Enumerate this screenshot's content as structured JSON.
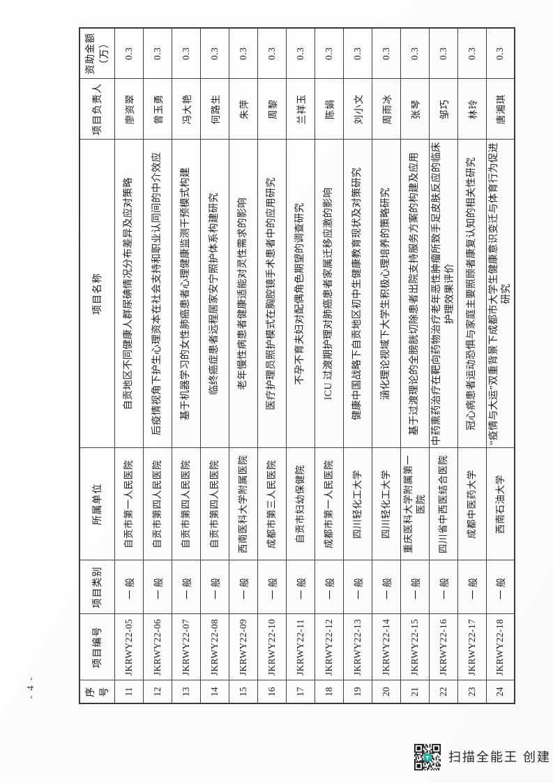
{
  "document": {
    "table": {
      "headers": [
        "序号",
        "项目编号",
        "项目类别",
        "所属单位",
        "项目名称",
        "项目负责人",
        "资助金额（万）"
      ],
      "rows": [
        {
          "no": "11",
          "code": "JKRWY22-05",
          "category": "一般",
          "unit": "自贡市第一人民医院",
          "title": "自贡地区不同健康人群尿碘情况分布差异及应对策略",
          "leader": "廖资翠",
          "amount": "0.3"
        },
        {
          "no": "12",
          "code": "JKRWY22-06",
          "category": "一般",
          "unit": "自贡市第四人民医院",
          "title": "后疫情视角下护生心理资本在社会支持和职业认同间的中介效应",
          "leader": "曾玉勇",
          "amount": "0.3"
        },
        {
          "no": "13",
          "code": "JKRWY22-07",
          "category": "一般",
          "unit": "自贡市第四人民医院",
          "title": "基于机器学习的女性肺癌患者心理健康监测干预模式构建",
          "leader": "冯大艳",
          "amount": "0.3"
        },
        {
          "no": "14",
          "code": "JKRWY22-08",
          "category": "一般",
          "unit": "自贡市第四人民医院",
          "title": "临终癌症患者远程居家安宁照护体系构建研究",
          "leader": "何路生",
          "amount": "0.3"
        },
        {
          "no": "15",
          "code": "JKRWY22-09",
          "category": "一般",
          "unit": "西南医科大学附属医院",
          "title": "老年慢性病患者健康适能对灵性需求的影响",
          "leader": "朱萍",
          "amount": "0.3"
        },
        {
          "no": "16",
          "code": "JKRWY22-10",
          "category": "一般",
          "unit": "成都市第三人民医院",
          "title": "医疗护理员照护模式在胸腔镜手术患者中的应用研究",
          "leader": "周黎",
          "amount": "0.3"
        },
        {
          "no": "17",
          "code": "JKRWY22-11",
          "category": "一般",
          "unit": "自贡市妇幼保健院",
          "title": "不孕不育夫妇对配偶角色期望的调查研究",
          "leader": "兰祥玉",
          "amount": "0.3"
        },
        {
          "no": "18",
          "code": "JKRWY22-12",
          "category": "一般",
          "unit": "成都市第一人民医院",
          "title": "ICU 过渡期护理对肺癌患者家属迁移应激的影响",
          "leader": "陈娟",
          "amount": "0.3"
        },
        {
          "no": "19",
          "code": "JKRWY22-13",
          "category": "一般",
          "unit": "四川轻化工大学",
          "title": "健康中国战略下自贡地区初中生健康教育现状及对策研究",
          "leader": "刘小文",
          "amount": "0.3"
        },
        {
          "no": "20",
          "code": "JKRWY22-14",
          "category": "一般",
          "unit": "四川轻化工大学",
          "title": "涵化理论视域下大学生积极心理培养的策略研究",
          "leader": "周雨冰",
          "amount": "0.3"
        },
        {
          "no": "21",
          "code": "JKRWY22-15",
          "category": "一般",
          "unit": "重庆医科大学附属第一医院",
          "title": "基于过渡理论的全膀胱切除患者出院支持服务方案的构建及应用",
          "leader": "张琴",
          "amount": "0.3"
        },
        {
          "no": "22",
          "code": "JKRWY22-16",
          "category": "一般",
          "unit": "四川省中西医结合医院",
          "title": "中药熏药治疗在靶向药物治疗老年恶性肿瘤所致手足皮肤反应的临床护理效果评价",
          "leader": "邹巧",
          "amount": "0.3"
        },
        {
          "no": "23",
          "code": "JKRWY22-17",
          "category": "一般",
          "unit": "成都中医药大学",
          "title": "冠心病患者运动恐惧与家庭主要照顾者康复认知的相关性研究",
          "leader": "林玲",
          "amount": "0.3"
        },
        {
          "no": "24",
          "code": "JKRWY22-18",
          "category": "一般",
          "unit": "西南石油大学",
          "title": "“疫情与大运”双重背景下成都市大学生健康意识变迁与体育行为促进研究",
          "leader": "唐湘琪",
          "amount": "0.3"
        }
      ]
    },
    "page_number": "- 4 -",
    "watermark": {
      "caption": "扫描全能王 创建",
      "qr_color": "#1a1a1a",
      "qr_accent": "#17b3a3"
    }
  }
}
